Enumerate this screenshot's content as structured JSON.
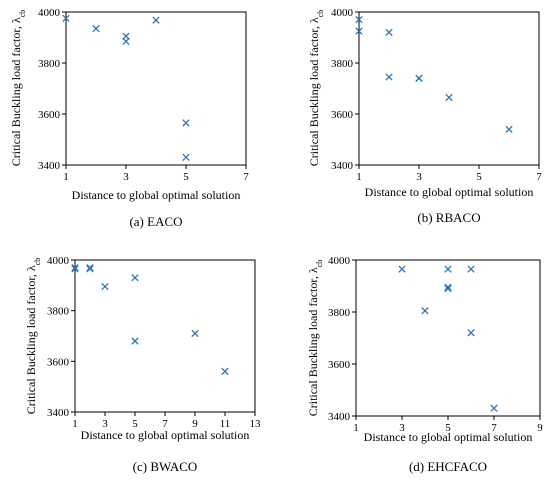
{
  "chart_data": [
    {
      "type": "scatter",
      "caption": "(a) EACO",
      "xlabel": "Distance to global optimal solution",
      "ylabel": "Critical Buckling load factor, λcb",
      "ylabel_main": "Critical Buckling load factor, λ",
      "ylabel_sub": "cb",
      "xlim": [
        1,
        7
      ],
      "xticks": [
        1,
        3,
        5,
        7
      ],
      "ylim": [
        3400,
        4000
      ],
      "yticks": [
        3400,
        3600,
        3800,
        4000
      ],
      "marker_color": "#2e75b6",
      "points": [
        [
          1,
          3975
        ],
        [
          2,
          3935
        ],
        [
          3,
          3905
        ],
        [
          3,
          3885
        ],
        [
          4,
          3968
        ],
        [
          5,
          3565
        ],
        [
          5,
          3430
        ]
      ]
    },
    {
      "type": "scatter",
      "caption": "(b) RBACO",
      "xlabel": "Distance to global optimal solution",
      "ylabel": "Critical Buckling load factor, λcb",
      "ylabel_main": "Critical Buckling load factor, λ",
      "ylabel_sub": "cb",
      "xlim": [
        1,
        7
      ],
      "xticks": [
        1,
        3,
        5,
        7
      ],
      "ylim": [
        3400,
        4000
      ],
      "yticks": [
        3400,
        3600,
        3800,
        4000
      ],
      "marker_color": "#2e75b6",
      "points": [
        [
          1,
          3970
        ],
        [
          1,
          3925
        ],
        [
          2,
          3920
        ],
        [
          2,
          3745
        ],
        [
          3,
          3740
        ],
        [
          3,
          3740
        ],
        [
          4,
          3665
        ],
        [
          6,
          3540
        ]
      ]
    },
    {
      "type": "scatter",
      "caption": "(c) BWACO",
      "xlabel": "Distance to global optimal solution",
      "ylabel": "Critical Buckling load factor, λcb",
      "ylabel_main": "Critical Buckling load factor, λ",
      "ylabel_sub": "cb",
      "xlim": [
        1,
        13
      ],
      "xticks": [
        1,
        3,
        5,
        7,
        9,
        11,
        13
      ],
      "ylim": [
        3400,
        4000
      ],
      "yticks": [
        3400,
        3600,
        3800,
        4000
      ],
      "marker_color": "#2e75b6",
      "points": [
        [
          1,
          3970
        ],
        [
          1,
          3965
        ],
        [
          2,
          3970
        ],
        [
          2,
          3965
        ],
        [
          3,
          3895
        ],
        [
          5,
          3930
        ],
        [
          5,
          3680
        ],
        [
          9,
          3710
        ],
        [
          11,
          3560
        ]
      ]
    },
    {
      "type": "scatter",
      "caption": "(d) EHCFACO",
      "xlabel": "Distance to global optimal solution",
      "ylabel": "Critical Buckling load factor, λcb",
      "ylabel_main": "Critical Buckling load factor, λ",
      "ylabel_sub": "cb",
      "xlim": [
        1,
        9
      ],
      "xticks": [
        1,
        3,
        5,
        7,
        9
      ],
      "ylim": [
        3400,
        4000
      ],
      "yticks": [
        3400,
        3600,
        3800,
        4000
      ],
      "marker_color": "#2e75b6",
      "points": [
        [
          3,
          3965
        ],
        [
          4,
          3805
        ],
        [
          5,
          3965
        ],
        [
          5,
          3895
        ],
        [
          5,
          3890
        ],
        [
          6,
          3965
        ],
        [
          6,
          3720
        ],
        [
          7,
          3430
        ]
      ]
    }
  ]
}
